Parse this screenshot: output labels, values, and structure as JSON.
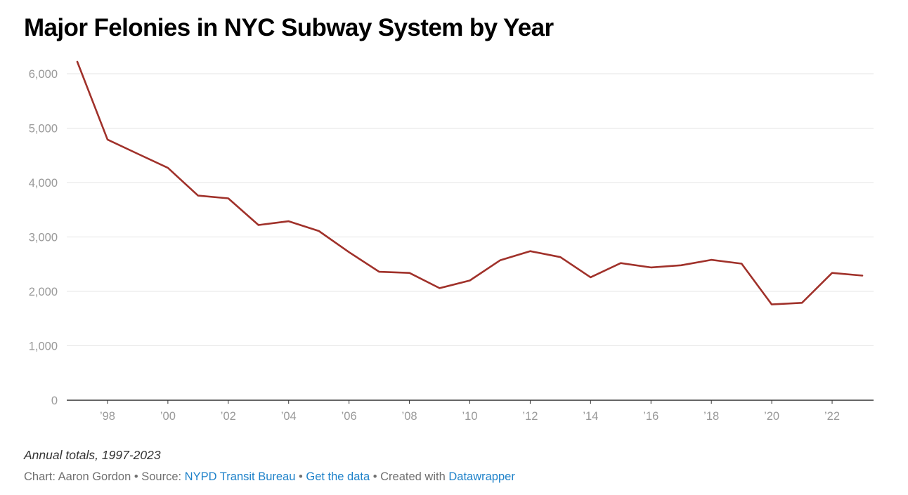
{
  "title": "Major Felonies in NYC Subway System by Year",
  "notes": "Annual totals, 1997-2023",
  "footer": {
    "chart_prefix": "Chart: Aaron Gordon",
    "separator": " • ",
    "source_prefix": "Source: ",
    "source_link": "NYPD Transit Bureau",
    "get_data": "Get the data",
    "created_with_prefix": "Created with ",
    "created_with_link": "Datawrapper"
  },
  "colors": {
    "line": "#a0312a",
    "grid": "#e4e4e4",
    "axis": "#333333",
    "tick_label": "#999999",
    "link": "#1d81c9"
  },
  "chart_data": {
    "type": "line",
    "title": "Major Felonies in NYC Subway System by Year",
    "xlabel": "",
    "ylabel": "",
    "x": [
      1997,
      1998,
      1999,
      2000,
      2001,
      2002,
      2003,
      2004,
      2005,
      2006,
      2007,
      2008,
      2009,
      2010,
      2011,
      2012,
      2013,
      2014,
      2015,
      2016,
      2017,
      2018,
      2019,
      2020,
      2021,
      2022,
      2023
    ],
    "series": [
      {
        "values": [
          6220,
          4790,
          4530,
          4270,
          3760,
          3710,
          3220,
          3290,
          3110,
          2720,
          2360,
          2340,
          2060,
          2200,
          2570,
          2740,
          2630,
          2260,
          2520,
          2440,
          2480,
          2580,
          2510,
          1760,
          1790,
          2340,
          2290
        ]
      }
    ],
    "ylim": [
      0,
      6220
    ],
    "xlim": [
      1997,
      2023
    ],
    "y_ticks": [
      0,
      1000,
      2000,
      3000,
      4000,
      5000,
      6000
    ],
    "y_tick_labels": [
      "0",
      "1,000",
      "2,000",
      "3,000",
      "4,000",
      "5,000",
      "6,000"
    ],
    "x_ticks": [
      1998,
      2000,
      2002,
      2004,
      2006,
      2008,
      2010,
      2012,
      2014,
      2016,
      2018,
      2020,
      2022
    ],
    "x_tick_labels": [
      "’98",
      "’00",
      "’02",
      "’04",
      "’06",
      "’08",
      "’10",
      "’12",
      "’14",
      "’16",
      "’18",
      "’20",
      "’22"
    ],
    "grid": true,
    "legend": "none"
  }
}
